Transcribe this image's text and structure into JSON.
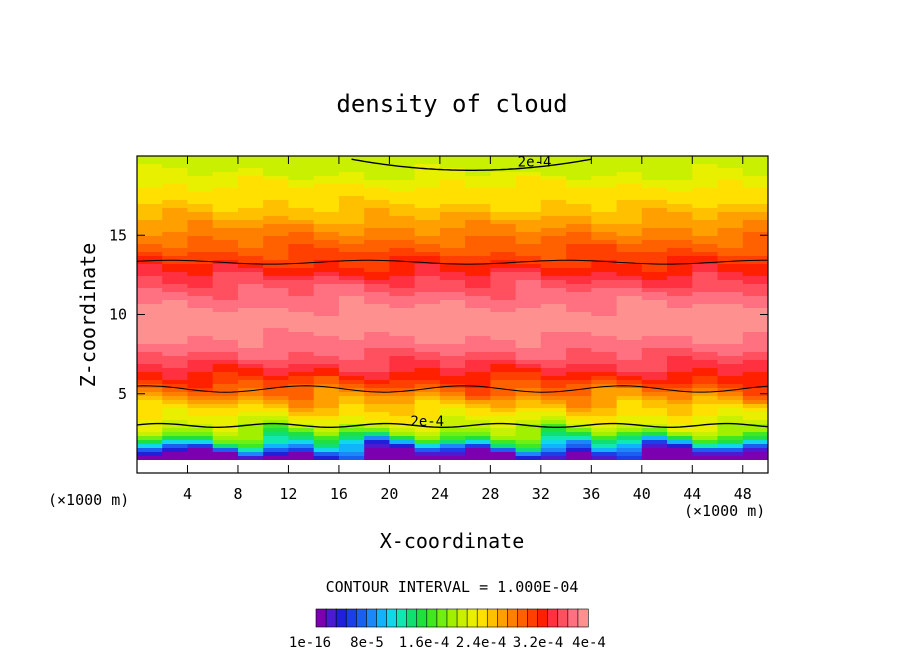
{
  "chart_data": {
    "type": "heatmap",
    "title": "density of cloud",
    "xlabel": "X-coordinate",
    "ylabel": "Z-coordinate",
    "x_unit": "(×1000 m)",
    "z_unit": "(×1000 m)",
    "xlim": [
      0,
      50
    ],
    "ylim": [
      0,
      20
    ],
    "x_ticks": [
      4,
      8,
      12,
      16,
      20,
      24,
      28,
      32,
      36,
      40,
      44,
      48
    ],
    "y_ticks": [
      5,
      10,
      15
    ],
    "contour_interval_text": "CONTOUR INTERVAL = 1.000E-04",
    "contour_labels": [
      "2e-4",
      "2e-4"
    ],
    "colorbar": {
      "labels": [
        "1e-16",
        "8e-5",
        "1.6e-4",
        "2.4e-4",
        "3.2e-4",
        "4e-4"
      ],
      "colors": [
        "#7a00b0",
        "#4a1bd0",
        "#2020d8",
        "#1a3ee8",
        "#1a60f0",
        "#1a88f8",
        "#10b4f8",
        "#10d8e8",
        "#10e8b0",
        "#10e070",
        "#20e040",
        "#40e820",
        "#70f010",
        "#a0f000",
        "#c8f000",
        "#e8f000",
        "#ffe000",
        "#ffc000",
        "#ffa000",
        "#ff8000",
        "#ff6000",
        "#ff4000",
        "#ff2000",
        "#ff3040",
        "#ff5060",
        "#ff7080",
        "#ff9090"
      ]
    },
    "profile_z": [
      0.3,
      1.0,
      1.5,
      2.0,
      2.5,
      3.0,
      4.0,
      5.0,
      6.0,
      7.0,
      8.0,
      9.0,
      10.0,
      11.0,
      12.0,
      13.0,
      14.0,
      15.0,
      16.0,
      17.0,
      18.0,
      19.0,
      19.7
    ],
    "profile_density": [
      0.0,
      0.0,
      6e-05,
      0.00014,
      0.00019,
      0.00022,
      0.00025,
      0.00029,
      0.00033,
      0.00036,
      0.00038,
      0.00039,
      0.00039,
      0.00038,
      0.00036,
      0.00033,
      0.00031,
      0.00029,
      0.00027,
      0.00025,
      0.00024,
      0.00022,
      0.000215
    ]
  }
}
